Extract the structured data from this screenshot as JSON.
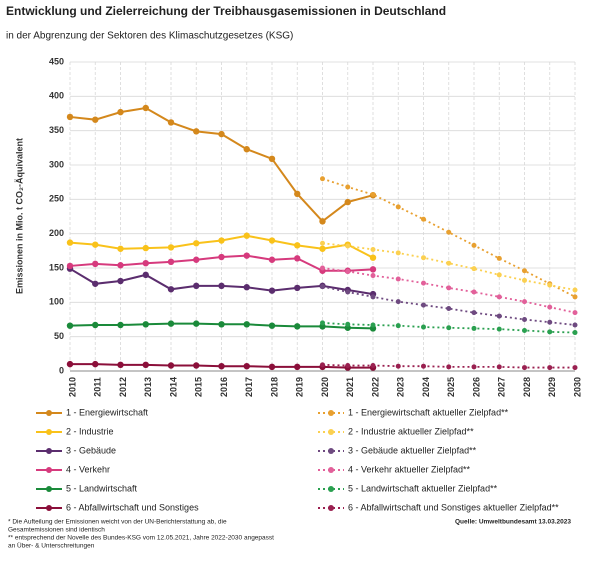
{
  "chart_data": {
    "type": "line",
    "title": "Entwicklung und Zielerreichung der Treibhausgasemissionen in Deutschland",
    "subtitle": "in der Abgrenzung der Sektoren des Klimaschutzgesetzes (KSG)",
    "y_label": "Emissionen in Mio. t CO₂-Äquivalent",
    "x": [
      2010,
      2011,
      2012,
      2013,
      2014,
      2015,
      2016,
      2017,
      2018,
      2019,
      2020,
      2021,
      2022,
      2023,
      2024,
      2025,
      2026,
      2027,
      2028,
      2029,
      2030
    ],
    "xlim": [
      2010,
      2030
    ],
    "xticks": [
      2010,
      2011,
      2012,
      2013,
      2014,
      2015,
      2016,
      2017,
      2018,
      2019,
      2020,
      2021,
      2022,
      2023,
      2024,
      2025,
      2026,
      2027,
      2028,
      2029,
      2030
    ],
    "ylim": [
      0,
      450
    ],
    "yticks": [
      0,
      50,
      100,
      150,
      200,
      250,
      300,
      350,
      400,
      450
    ],
    "grid": true,
    "series": [
      {
        "name": "1 - Energiewirtschaft",
        "color": "#d4881c",
        "style": "solid",
        "values": [
          370,
          366,
          377,
          383,
          362,
          349,
          345,
          323,
          309,
          258,
          218,
          246,
          256,
          null,
          null,
          null,
          null,
          null,
          null,
          null,
          null
        ]
      },
      {
        "name": "2 - Industrie",
        "color": "#f9c21a",
        "style": "solid",
        "values": [
          187,
          184,
          178,
          179,
          180,
          186,
          190,
          197,
          190,
          183,
          178,
          184,
          165,
          null,
          null,
          null,
          null,
          null,
          null,
          null,
          null
        ]
      },
      {
        "name": "3 - Gebäude",
        "color": "#5b2d6e",
        "style": "solid",
        "values": [
          149,
          127,
          131,
          140,
          119,
          124,
          124,
          122,
          117,
          121,
          124,
          118,
          112,
          null,
          null,
          null,
          null,
          null,
          null,
          null,
          null
        ]
      },
      {
        "name": "4 - Verkehr",
        "color": "#d63a7d",
        "style": "solid",
        "values": [
          153,
          156,
          154,
          157,
          159,
          162,
          166,
          168,
          162,
          164,
          146,
          146,
          148,
          null,
          null,
          null,
          null,
          null,
          null,
          null,
          null
        ]
      },
      {
        "name": "5 - Landwirtschaft",
        "color": "#1a8a3a",
        "style": "solid",
        "values": [
          66,
          67,
          67,
          68,
          69,
          69,
          68,
          68,
          66,
          65,
          65,
          63,
          62,
          null,
          null,
          null,
          null,
          null,
          null,
          null,
          null
        ]
      },
      {
        "name": "6 - Abfallwirtschaft und Sonstiges",
        "color": "#8b0f3a",
        "style": "solid",
        "values": [
          10,
          10,
          9,
          9,
          8,
          8,
          7,
          7,
          6,
          6,
          6,
          5,
          5,
          null,
          null,
          null,
          null,
          null,
          null,
          null,
          null
        ]
      },
      {
        "name": "1 - Energiewirtschaft aktueller Zielpfad**",
        "color": "#e8a030",
        "style": "dotted",
        "values": [
          null,
          null,
          null,
          null,
          null,
          null,
          null,
          null,
          null,
          null,
          280,
          268,
          257,
          239,
          221,
          202,
          183,
          164,
          146,
          127,
          108
        ]
      },
      {
        "name": "2 - Industrie aktueller Zielpfad**",
        "color": "#fbd050",
        "style": "dotted",
        "values": [
          null,
          null,
          null,
          null,
          null,
          null,
          null,
          null,
          null,
          null,
          186,
          182,
          177,
          172,
          165,
          157,
          149,
          140,
          132,
          125,
          118
        ]
      },
      {
        "name": "3 - Gebäude aktueller Zielpfad**",
        "color": "#6e4a80",
        "style": "dotted",
        "values": [
          null,
          null,
          null,
          null,
          null,
          null,
          null,
          null,
          null,
          null,
          123,
          115,
          108,
          101,
          96,
          91,
          85,
          80,
          75,
          71,
          67
        ]
      },
      {
        "name": "4 - Verkehr aktueller Zielpfad**",
        "color": "#e2609a",
        "style": "dotted",
        "values": [
          null,
          null,
          null,
          null,
          null,
          null,
          null,
          null,
          null,
          null,
          150,
          145,
          139,
          134,
          128,
          121,
          115,
          108,
          101,
          93,
          85
        ]
      },
      {
        "name": "5 - Landwirtschaft aktueller Zielpfad**",
        "color": "#2aa050",
        "style": "dotted",
        "values": [
          null,
          null,
          null,
          null,
          null,
          null,
          null,
          null,
          null,
          null,
          70,
          68,
          67,
          66,
          64,
          63,
          62,
          61,
          59,
          57,
          56
        ]
      },
      {
        "name": "6 - Abfallwirtschaft und Sonstiges aktueller Zielpfad**",
        "color": "#9a2050",
        "style": "dotted",
        "values": [
          null,
          null,
          null,
          null,
          null,
          null,
          null,
          null,
          null,
          null,
          9,
          8,
          8,
          7,
          7,
          6,
          6,
          6,
          5,
          5,
          5
        ]
      }
    ],
    "notes": [
      "* Die Aufteilung der Emissionen weicht von der UN-Berichterstattung ab, die",
      "Gesamtemissionen sind identisch",
      "** entsprechend der Novelle des Bundes-KSG vom 12.05.2021, Jahre 2022-2030 angepasst",
      "an Über- & Unterschreitungen"
    ],
    "source": "Quelle: Umweltbundesamt  13.03.2023"
  }
}
